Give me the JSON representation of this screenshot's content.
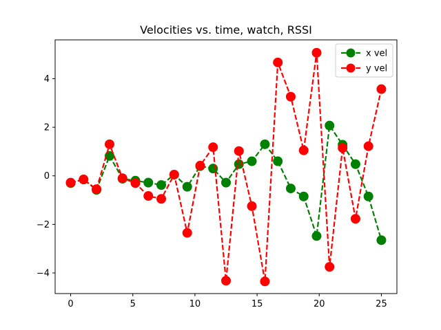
{
  "chart_data": {
    "type": "line",
    "title": "Velocities vs. time, watch, RSSI",
    "xlabel": "",
    "ylabel": "",
    "xlim": [
      -1.25,
      26.25
    ],
    "ylim": [
      -4.85,
      5.6
    ],
    "xticks": [
      0,
      5,
      10,
      15,
      20,
      25
    ],
    "yticks": [
      -4,
      -2,
      0,
      2,
      4
    ],
    "xtick_labels": [
      "0",
      "5",
      "10",
      "15",
      "20",
      "25"
    ],
    "ytick_labels": [
      "−4",
      "−2",
      "0",
      "2",
      "4"
    ],
    "grid": false,
    "legend_position": "top-right",
    "series": [
      {
        "name": "x vel",
        "color": "#008000",
        "line_style": "dashed",
        "marker": "circle",
        "x": [
          0,
          1.04,
          2.08,
          3.13,
          4.17,
          5.21,
          6.25,
          7.29,
          8.33,
          9.38,
          10.42,
          11.46,
          12.5,
          13.54,
          14.58,
          15.63,
          16.67,
          17.71,
          18.75,
          19.79,
          20.83,
          21.88,
          22.92,
          23.96,
          25
        ],
        "y": [
          -0.3,
          -0.15,
          -0.58,
          0.82,
          -0.12,
          -0.2,
          -0.28,
          -0.38,
          0.05,
          -0.45,
          0.4,
          0.3,
          -0.28,
          0.48,
          0.6,
          1.3,
          0.6,
          -0.52,
          -0.85,
          -2.48,
          2.07,
          1.28,
          0.48,
          -0.85,
          -2.65
        ]
      },
      {
        "name": "y vel",
        "color": "#ff0000",
        "line_style": "dashed",
        "marker": "circle",
        "x": [
          0,
          1.04,
          2.08,
          3.13,
          4.17,
          5.21,
          6.25,
          7.29,
          8.33,
          9.38,
          10.42,
          11.46,
          12.5,
          13.54,
          14.58,
          15.63,
          16.67,
          17.71,
          18.75,
          19.79,
          20.83,
          21.88,
          22.92,
          23.96,
          25
        ],
        "y": [
          -0.28,
          -0.15,
          -0.55,
          1.3,
          -0.1,
          -0.3,
          -0.83,
          -0.95,
          0.05,
          -2.35,
          0.42,
          1.18,
          -4.32,
          1.02,
          -1.25,
          -4.35,
          4.67,
          3.26,
          1.05,
          5.07,
          -3.75,
          1.15,
          -1.77,
          1.22,
          3.57
        ]
      }
    ]
  }
}
